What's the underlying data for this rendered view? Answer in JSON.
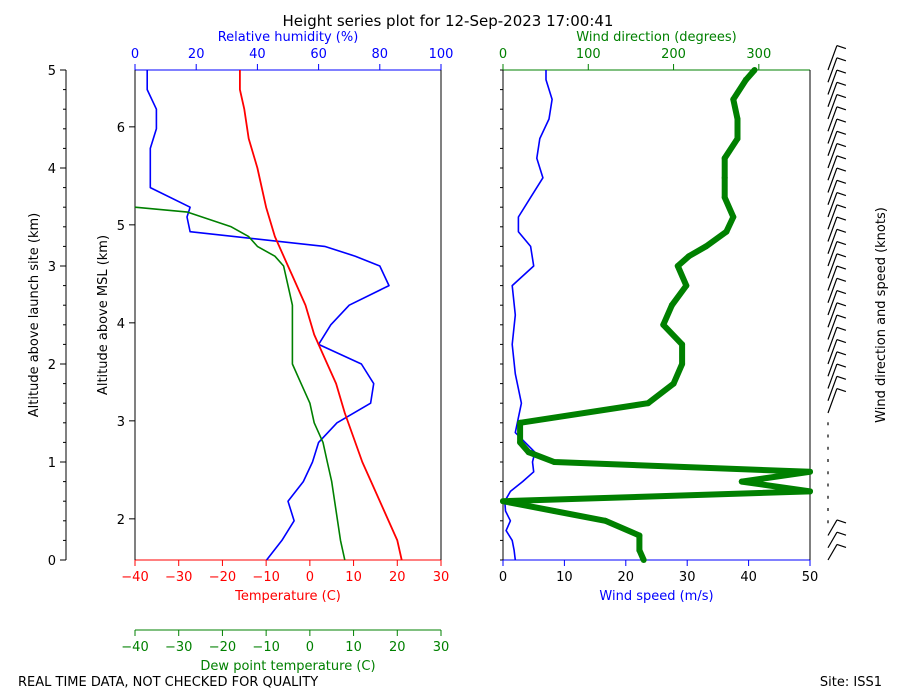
{
  "chart_data": {
    "type": "line",
    "title": "Height series plot for 12-Sep-2023 17:00:41",
    "footer_left": "REAL TIME DATA, NOT CHECKED FOR QUALITY",
    "footer_right": "Site: ISS1",
    "colors": {
      "temperature": "#ff0000",
      "dewpoint": "#008000",
      "rh": "#0000ff",
      "wspd": "#0000ff",
      "wdir": "#008000",
      "barbs": "#000000"
    },
    "left_panel": {
      "y_label_outer": "Altitude above launch site (km)",
      "y_label_inner": "Altitude above MSL (km)",
      "ylim_agl": [
        0,
        5
      ],
      "msl_ticks": [
        "2",
        "3",
        "4",
        "5",
        "6"
      ],
      "agl_ticks": [
        "0",
        "1",
        "2",
        "3",
        "4",
        "5"
      ],
      "x_temp_label": "Temperature (C)",
      "x_dew_label": "Dew point temperature (C)",
      "x_rh_label": "Relative humidity (%)",
      "temp_xlim": [
        -40,
        30
      ],
      "temp_ticks": [
        "−40",
        "−30",
        "−20",
        "−10",
        "0",
        "10",
        "20",
        "30"
      ],
      "rh_xlim": [
        0,
        100
      ],
      "rh_ticks": [
        "0",
        "20",
        "40",
        "60",
        "80",
        "100"
      ],
      "temperature": {
        "alt": [
          0,
          0.2,
          0.5,
          0.8,
          1.0,
          1.5,
          1.8,
          2.0,
          2.3,
          2.6,
          2.9,
          3.0,
          3.3,
          3.6,
          4.0,
          4.3,
          4.6,
          4.8,
          5.0
        ],
        "val": [
          21,
          20,
          17,
          14,
          12,
          8,
          6,
          4,
          1,
          -1,
          -4,
          -5,
          -8,
          -10,
          -12,
          -14,
          -15,
          -16,
          -16
        ]
      },
      "dewpoint": {
        "alt": [
          0,
          0.2,
          0.5,
          0.8,
          1.0,
          1.2,
          1.4,
          1.6,
          1.8,
          2.0,
          2.2,
          2.4,
          2.6,
          2.8,
          3.0,
          3.1,
          3.2,
          3.3,
          3.4,
          3.55,
          3.6
        ],
        "val": [
          8,
          7,
          6,
          5,
          4,
          3,
          1,
          0,
          -2,
          -4,
          -4,
          -4,
          -4,
          -5,
          -6,
          -8,
          -12,
          -14,
          -18,
          -28,
          -40
        ]
      },
      "rh": {
        "alt": [
          0,
          0.2,
          0.4,
          0.6,
          0.8,
          1.0,
          1.2,
          1.4,
          1.6,
          1.8,
          2.0,
          2.2,
          2.4,
          2.6,
          2.8,
          3.0,
          3.1,
          3.2,
          3.35,
          3.5,
          3.6,
          3.8,
          4.0,
          4.2,
          4.4,
          4.6,
          4.8,
          5.0
        ],
        "val": [
          43,
          48,
          52,
          50,
          55,
          58,
          60,
          66,
          77,
          78,
          74,
          60,
          64,
          70,
          83,
          80,
          72,
          62,
          18,
          17,
          18,
          5,
          5,
          5,
          7,
          7,
          4,
          4
        ]
      }
    },
    "right_panel": {
      "x_speed_label": "Wind speed (m/s)",
      "x_dir_label": "Wind direction (degrees)",
      "barb_label": "Wind direction and speed (knots)",
      "speed_xlim": [
        0,
        50
      ],
      "speed_ticks": [
        "0",
        "10",
        "20",
        "30",
        "40",
        "50"
      ],
      "dir_xlim": [
        0,
        360
      ],
      "dir_ticks": [
        "0",
        "100",
        "200",
        "300"
      ],
      "speed": {
        "alt": [
          0,
          0.1,
          0.2,
          0.3,
          0.4,
          0.5,
          0.6,
          0.7,
          0.8,
          0.9,
          1.0,
          1.1,
          1.3,
          1.6,
          1.9,
          2.2,
          2.5,
          2.8,
          3.0,
          3.2,
          3.35,
          3.5,
          3.7,
          3.9,
          4.1,
          4.3,
          4.5,
          4.7,
          4.9,
          5.0
        ],
        "val": [
          2,
          1.8,
          1.5,
          0.5,
          1.2,
          0.4,
          0.3,
          1.2,
          3.2,
          5.0,
          4.8,
          5.2,
          2.0,
          3.0,
          2.0,
          1.5,
          2.0,
          1.5,
          5.0,
          4.5,
          2.5,
          2.5,
          4.5,
          6.5,
          5.5,
          6.0,
          7.5,
          8.0,
          7.0,
          7.0
        ]
      },
      "direction": {
        "alt": [
          0,
          0.1,
          0.25,
          0.4,
          0.5,
          0.6,
          0.7,
          0.8,
          0.9,
          1.0,
          1.1,
          1.2,
          1.4,
          1.6,
          1.8,
          2.0,
          2.2,
          2.4,
          2.6,
          2.8,
          3.0,
          3.1,
          3.2,
          3.35,
          3.5,
          3.7,
          3.9,
          4.1,
          4.3,
          4.5,
          4.7,
          4.9,
          5.0
        ],
        "val": [
          165,
          160,
          160,
          120,
          60,
          0,
          360,
          280,
          360,
          60,
          30,
          20,
          20,
          170,
          200,
          210,
          210,
          188,
          198,
          215,
          205,
          218,
          238,
          262,
          270,
          260,
          260,
          260,
          275,
          275,
          270,
          285,
          295
        ]
      }
    }
  }
}
